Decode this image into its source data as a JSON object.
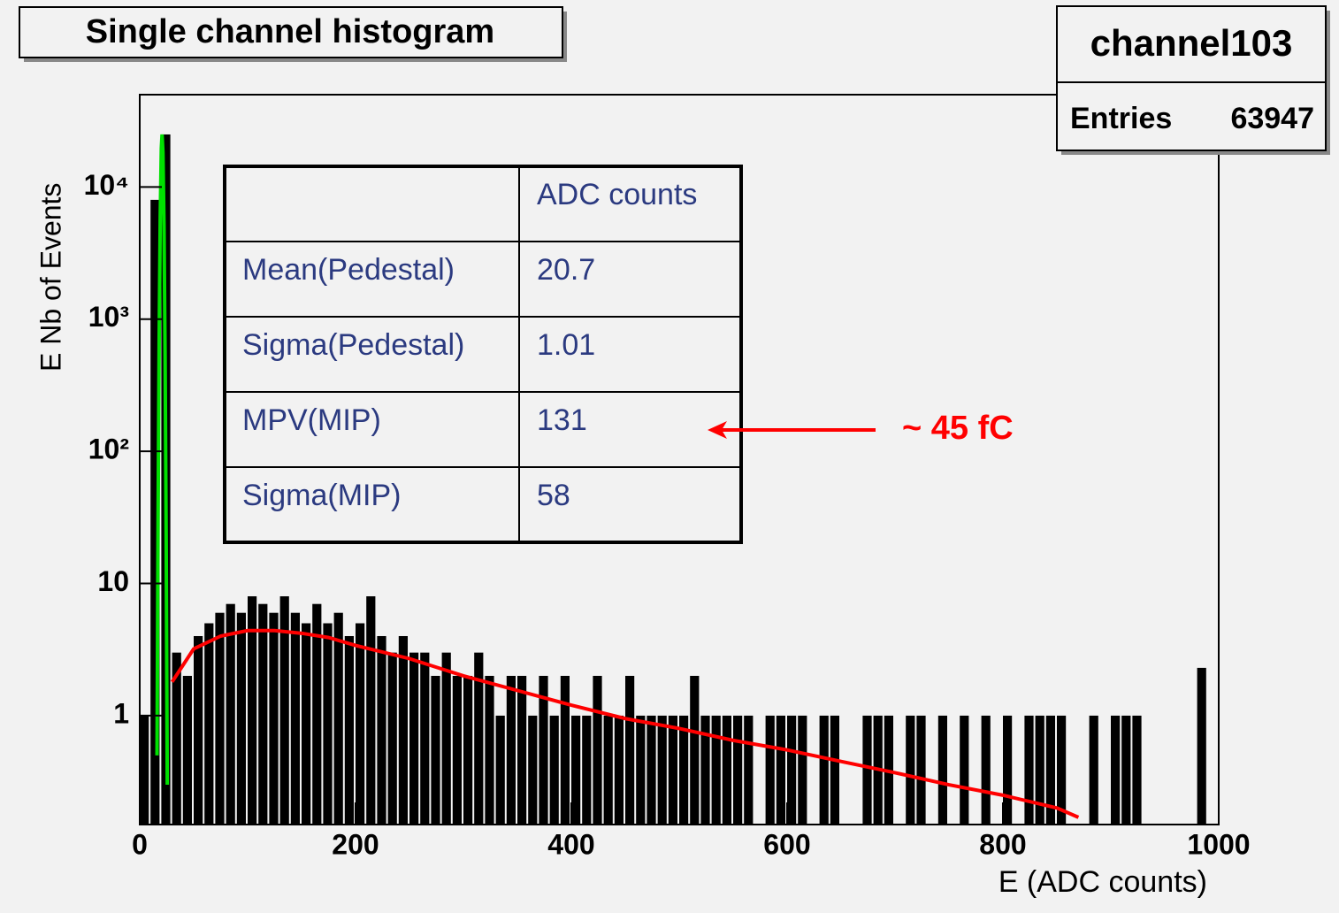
{
  "chart_data": {
    "type": "histogram",
    "title": "Single channel histogram",
    "xlabel": "E (ADC counts)",
    "ylabel": "E Nb of Events",
    "log_y": true,
    "xlim": [
      0,
      1000
    ],
    "ylim": [
      0.15,
      50000
    ],
    "xticks": [
      0,
      200,
      400,
      600,
      800,
      1000
    ],
    "yticks": [
      1,
      10,
      {
        "value": 100,
        "label": "10²"
      },
      {
        "value": 1000,
        "label": "10³"
      },
      {
        "value": 10000,
        "label": "10⁴"
      }
    ],
    "color": "#000000",
    "bins": [
      0,
      10,
      20,
      30,
      40,
      50,
      60,
      70,
      80,
      90,
      100,
      110,
      120,
      130,
      140,
      150,
      160,
      170,
      180,
      190,
      200,
      210,
      220,
      230,
      240,
      250,
      260,
      270,
      280,
      290,
      300,
      310,
      320,
      330,
      340,
      350,
      360,
      370,
      380,
      390,
      400,
      410,
      420,
      430,
      440,
      450,
      460,
      470,
      480,
      490,
      500,
      510,
      520,
      530,
      540,
      550,
      560,
      570,
      580,
      590,
      600,
      610,
      620,
      630,
      640,
      650,
      660,
      670,
      680,
      690,
      700,
      710,
      720,
      730,
      740,
      750,
      760,
      770,
      780,
      790,
      800,
      810,
      820,
      830,
      840,
      850,
      860,
      870,
      880,
      890,
      900,
      910,
      920,
      930,
      940,
      950,
      960,
      970,
      980,
      990,
      1000
    ],
    "counts": [
      1,
      8000,
      25000,
      3,
      2,
      4,
      5,
      6,
      7,
      6,
      8,
      7,
      6,
      8,
      6,
      5,
      7,
      5,
      6,
      4,
      5,
      8,
      4,
      3,
      4,
      3,
      3,
      2,
      3,
      2,
      2,
      3,
      2,
      1,
      2,
      2,
      1,
      2,
      1,
      2,
      1,
      1,
      2,
      1,
      1,
      2,
      1,
      1,
      1,
      1,
      1,
      2,
      1,
      1,
      1,
      1,
      1,
      0,
      1,
      1,
      1,
      1,
      0,
      1,
      1,
      0,
      0,
      1,
      1,
      1,
      0,
      1,
      1,
      0,
      1,
      0,
      1,
      0,
      1,
      0,
      1,
      0,
      1,
      1,
      1,
      1,
      0,
      0,
      1,
      0,
      1,
      1,
      1,
      0,
      0,
      0,
      0,
      0,
      2.3,
      0
    ],
    "curves": [
      {
        "color": "#00e000",
        "x": [
          16,
          17,
          18,
          19,
          20,
          20.7,
          21.5,
          22.5,
          23.5,
          24.5,
          25.5
        ],
        "y": [
          0.5,
          31,
          700,
          6000,
          19700,
          25000,
          18300,
          5100,
          540,
          21,
          0.3
        ]
      },
      {
        "color": "#ff0000",
        "x": [
          30,
          50,
          75,
          100,
          125,
          150,
          175,
          200,
          250,
          300,
          350,
          400,
          450,
          500,
          550,
          600,
          650,
          700,
          750,
          800,
          850,
          870
        ],
        "y": [
          1.8,
          3.2,
          4.0,
          4.4,
          4.4,
          4.2,
          3.9,
          3.4,
          2.7,
          2.0,
          1.55,
          1.2,
          0.95,
          0.8,
          0.65,
          0.55,
          0.45,
          0.37,
          0.3,
          0.25,
          0.2,
          0.17
        ]
      }
    ],
    "stats_box": {
      "title": "channel103",
      "entries_label": "Entries",
      "entries": 63947
    },
    "annotation_table": {
      "header": "ADC counts",
      "rows": [
        [
          "Mean(Pedestal)",
          "20.7"
        ],
        [
          "Sigma(Pedestal)",
          "1.01"
        ],
        [
          "MPV(MIP)",
          "131"
        ],
        [
          "Sigma(MIP)",
          "58"
        ]
      ]
    },
    "annotation": "~ 45 fC"
  }
}
